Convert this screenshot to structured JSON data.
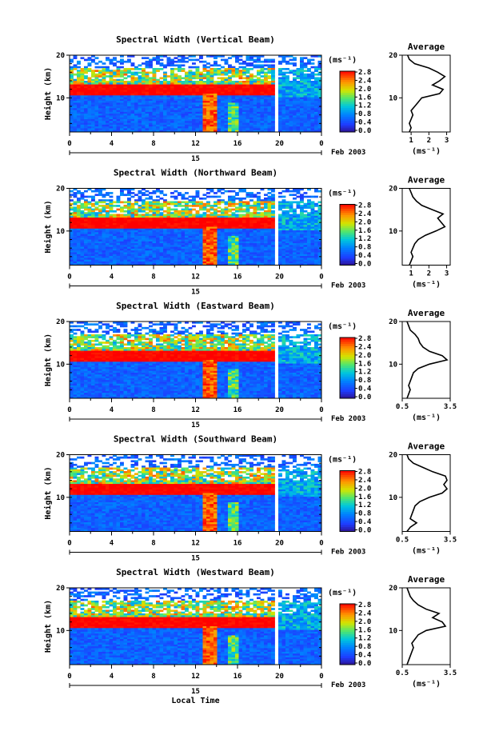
{
  "xlabel": "Local Time",
  "date_label": "Feb 2003",
  "day_label": "15",
  "ylabel": "Height (km)",
  "unit_label": "(ms⁻¹)",
  "avg_title": "Average",
  "x_ticks": [
    "0",
    "4",
    "8",
    "12",
    "16",
    "20",
    "0"
  ],
  "y_ticks": [
    "20",
    "10"
  ],
  "colorbar_ticks": [
    "2.8",
    "2.4",
    "2.0",
    "1.6",
    "1.2",
    "0.8",
    "0.4",
    "0.0"
  ],
  "colorbar_colors": [
    "#ff0000",
    "#ff7a00",
    "#ffd800",
    "#90ee60",
    "#00c8c8",
    "#0096ff",
    "#1e3cff",
    "#3214c8"
  ],
  "panels": [
    {
      "title": "Spectral Width (Vertical Beam)",
      "avg_ticks": [
        "1",
        "2",
        "3"
      ],
      "avg_xlim": [
        0.5,
        3.2
      ]
    },
    {
      "title": "Spectral Width (Northward Beam)",
      "avg_ticks": [
        "1",
        "2",
        "3"
      ],
      "avg_xlim": [
        0.5,
        3.2
      ]
    },
    {
      "title": "Spectral Width (Eastward Beam)",
      "avg_ticks": [
        "0.5",
        "3.5"
      ],
      "avg_xlim": [
        0.5,
        3.5
      ]
    },
    {
      "title": "Spectral Width (Southward Beam)",
      "avg_ticks": [
        "0.5",
        "3.5"
      ],
      "avg_xlim": [
        0.5,
        3.5
      ]
    },
    {
      "title": "Spectral Width (Westward Beam)",
      "avg_ticks": [
        "0.5",
        "3.5"
      ],
      "avg_xlim": [
        0.5,
        3.5
      ]
    }
  ],
  "chart_data": {
    "type": "heatmap",
    "x_range": [
      0,
      24
    ],
    "ylim": [
      2,
      20
    ],
    "color_range": [
      0.0,
      2.8
    ],
    "avg_profiles": [
      {
        "height": [
          2,
          3,
          4,
          5,
          6,
          7,
          8,
          9,
          10,
          11,
          12,
          13,
          14,
          15,
          16,
          17,
          18,
          19,
          20
        ],
        "width": [
          0.9,
          1.0,
          0.9,
          1.0,
          1.1,
          1.0,
          1.2,
          1.4,
          1.6,
          2.6,
          2.8,
          2.2,
          2.6,
          2.9,
          2.5,
          2.0,
          1.2,
          0.9,
          0.8
        ]
      },
      {
        "height": [
          2,
          3,
          4,
          5,
          6,
          7,
          8,
          9,
          10,
          11,
          12,
          13,
          14,
          15,
          16,
          17,
          18,
          19,
          20
        ],
        "width": [
          0.9,
          1.0,
          1.1,
          1.0,
          1.1,
          1.2,
          1.4,
          1.8,
          2.4,
          2.9,
          2.7,
          2.5,
          2.8,
          2.2,
          1.6,
          1.3,
          1.1,
          1.0,
          0.9
        ]
      },
      {
        "height": [
          2,
          3,
          4,
          5,
          6,
          7,
          8,
          9,
          10,
          11,
          12,
          13,
          14,
          15,
          16,
          17,
          18,
          19,
          20
        ],
        "width": [
          0.8,
          0.9,
          1.0,
          0.9,
          1.0,
          1.1,
          1.2,
          1.5,
          2.2,
          3.3,
          3.0,
          2.2,
          1.8,
          1.6,
          1.5,
          1.3,
          1.0,
          0.9,
          0.8
        ]
      },
      {
        "height": [
          2,
          3,
          4,
          5,
          6,
          7,
          8,
          9,
          10,
          11,
          12,
          13,
          14,
          15,
          16,
          17,
          18,
          19,
          20
        ],
        "width": [
          0.8,
          1.0,
          1.4,
          1.0,
          1.1,
          1.2,
          1.3,
          1.6,
          2.2,
          3.0,
          3.3,
          3.1,
          3.3,
          3.2,
          2.4,
          1.8,
          1.2,
          0.9,
          0.8
        ]
      },
      {
        "height": [
          2,
          3,
          4,
          5,
          6,
          7,
          8,
          9,
          10,
          11,
          12,
          13,
          14,
          15,
          16,
          17,
          18,
          19,
          20
        ],
        "width": [
          0.8,
          0.9,
          1.0,
          1.1,
          1.2,
          1.1,
          1.3,
          1.5,
          2.0,
          3.2,
          3.0,
          2.4,
          2.8,
          2.0,
          1.5,
          1.2,
          1.0,
          0.9,
          0.8
        ]
      }
    ]
  }
}
